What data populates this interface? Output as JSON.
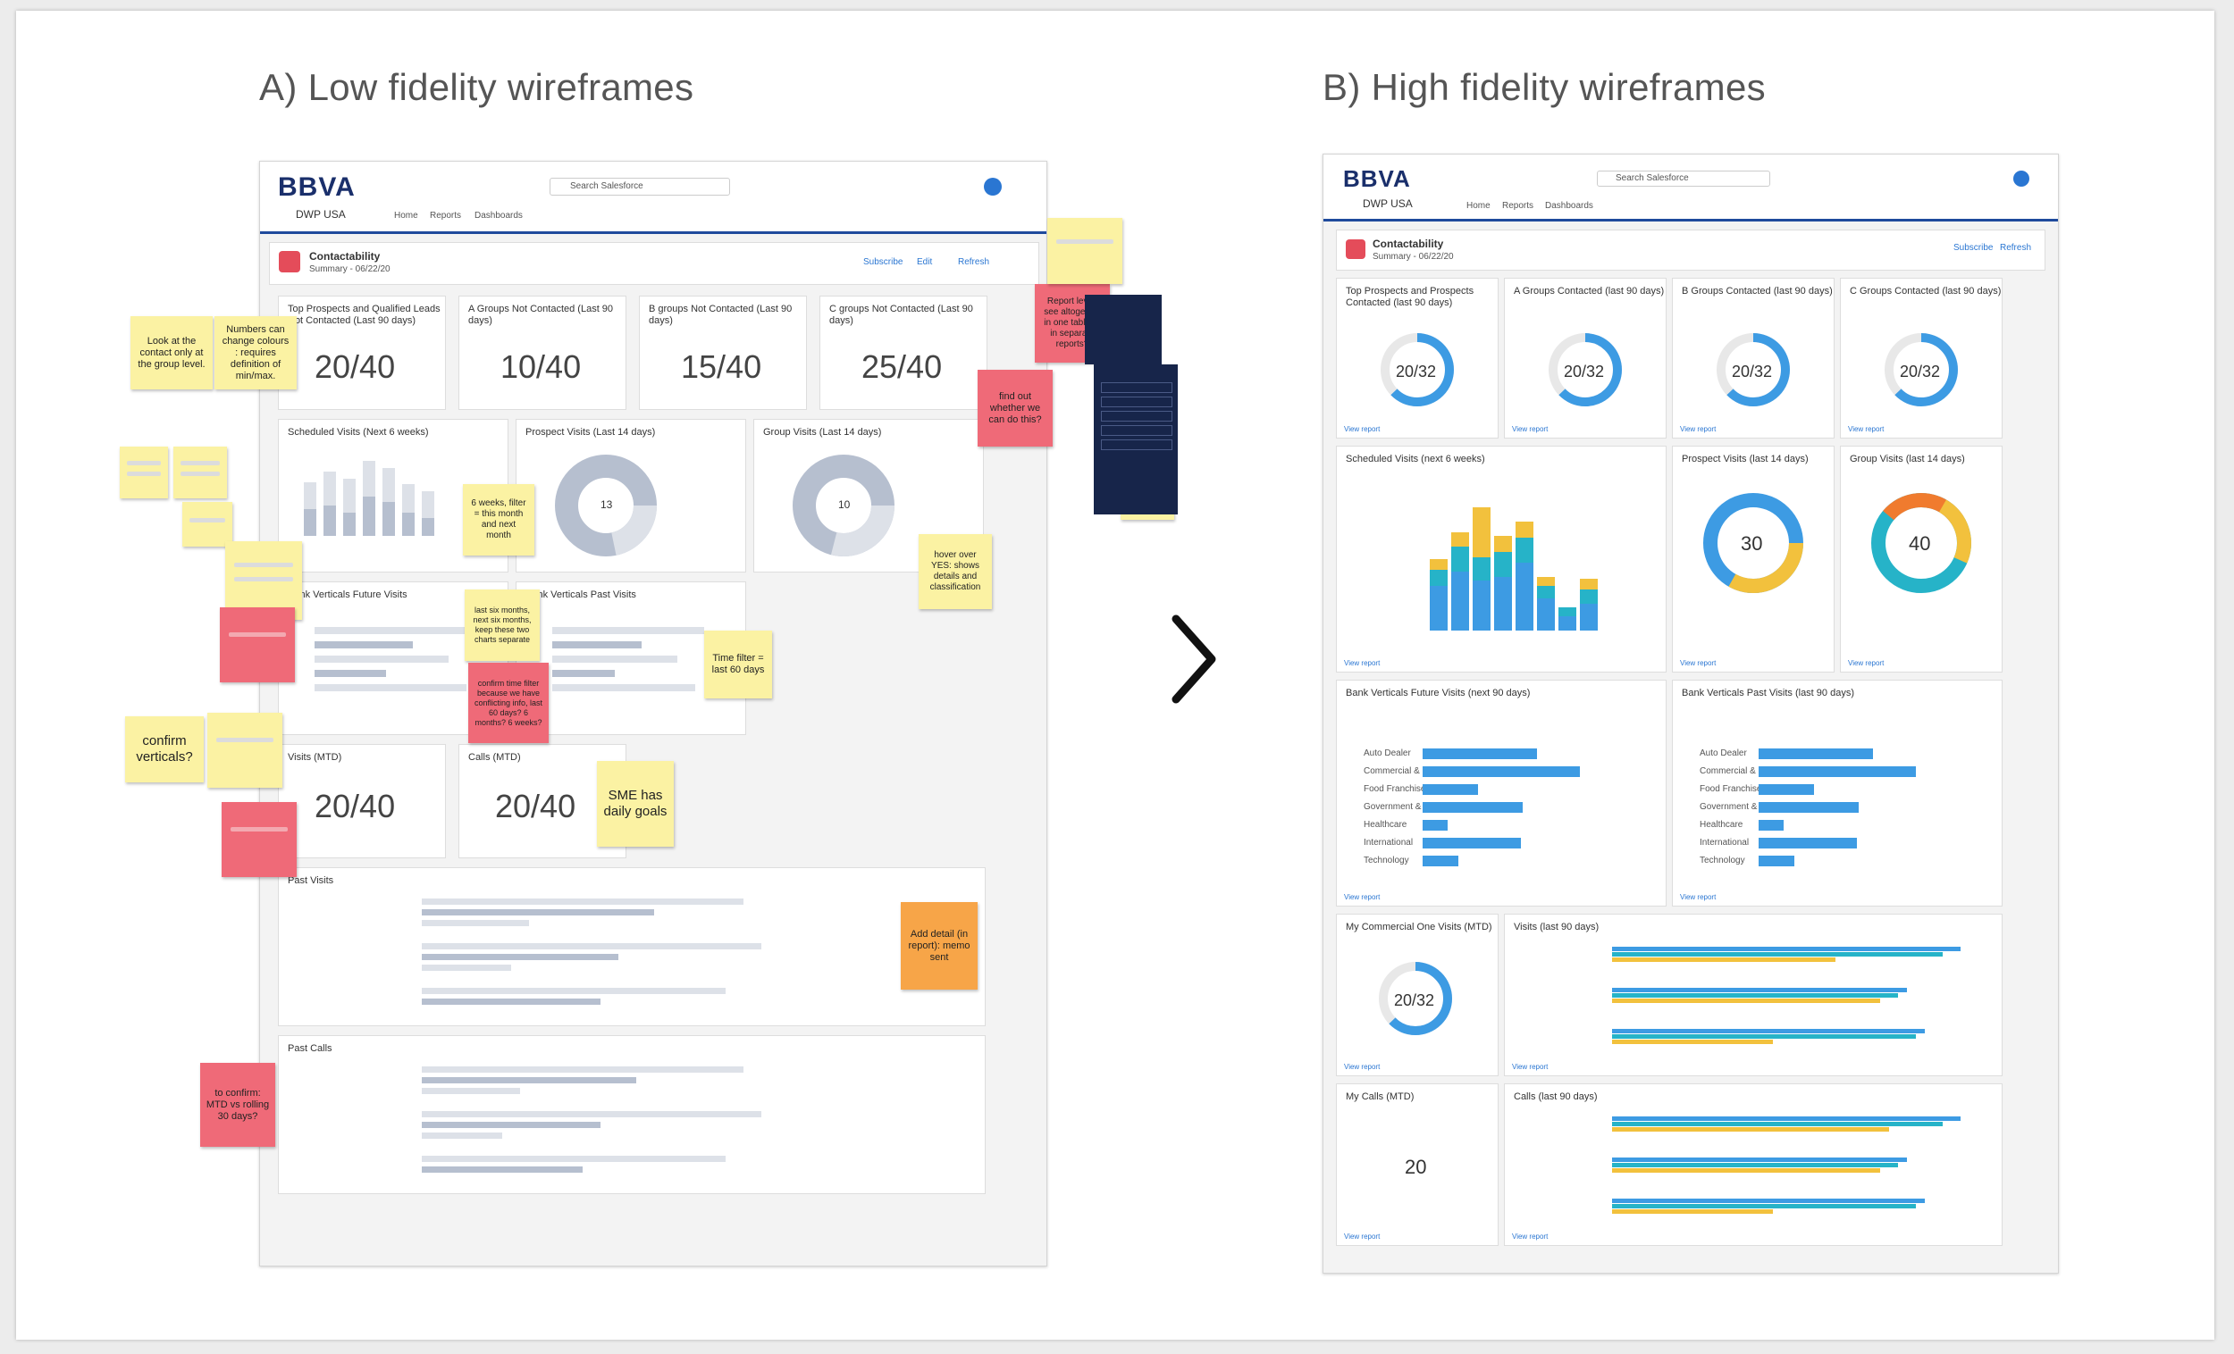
{
  "titles": {
    "a": "A) Low fidelity wireframes",
    "b": "B) High fidelity wireframes"
  },
  "brand": {
    "logo": "BBVA",
    "app": "DWP USA",
    "nav": [
      "Home",
      "Reports",
      "Dashboards"
    ],
    "search_placeholder": "Search Salesforce"
  },
  "dashboard": {
    "title": "Contactability",
    "subtitle": "Summary - 06/22/20",
    "actions": [
      "Subscribe",
      "Edit",
      "Refresh"
    ]
  },
  "low": {
    "kpis": [
      {
        "title": "Top Prospects and Qualified Leads Not Contacted (Last 90 days)",
        "value": "20/40"
      },
      {
        "title": "A Groups Not Contacted (Last 90 days)",
        "value": "10/40"
      },
      {
        "title": "B groups Not Contacted (Last 90 days)",
        "value": "15/40"
      },
      {
        "title": "C groups Not Contacted (Last 90 days)",
        "value": "25/40"
      }
    ],
    "charts": {
      "scheduled": "Scheduled Visits (Next 6 weeks)",
      "prospect": "Prospect Visits (Last 14 days)",
      "group": "Group Visits (Last 14 days)",
      "future": "Bank Verticals Future Visits",
      "past_v": "Bank Verticals Past Visits",
      "visits_mtd": "Visits (MTD)",
      "calls_mtd": "Calls (MTD)",
      "past_visits": "Past Visits",
      "past_calls": "Past Calls"
    },
    "donut_values": {
      "prospect": "13",
      "group": "10"
    },
    "mtd_values": {
      "visits": "20/40",
      "calls": "20/40"
    }
  },
  "high": {
    "kpis": [
      {
        "title": "Top Prospects and Prospects Contacted (last 90 days)",
        "value": "20/32"
      },
      {
        "title": "A Groups Contacted (last 90 days)",
        "value": "20/32"
      },
      {
        "title": "B Groups Contacted (last 90 days)",
        "value": "20/32"
      },
      {
        "title": "C Groups Contacted (last 90 days)",
        "value": "20/32"
      }
    ],
    "charts": {
      "scheduled": "Scheduled Visits (next 6 weeks)",
      "prospect": "Prospect Visits (last 14 days)",
      "group": "Group Visits (last 14 days)",
      "future": "Bank Verticals Future Visits (next 90 days)",
      "past_v": "Bank Verticals Past Visits (last 90 days)",
      "commercial": "My Commercial One Visits (MTD)",
      "visits_last": "Visits (last 90 days)",
      "calls_mtd": "My Calls (MTD)",
      "calls_last": "Calls (last 90 days)"
    },
    "donut_values": {
      "prospect": "30",
      "group": "40"
    },
    "calls_value": "20",
    "verticals": [
      "Auto Dealer",
      "Commercial & Industrial",
      "Food Franchise",
      "Government & Institutions",
      "Healthcare",
      "International",
      "Technology"
    ],
    "view_report": "View report"
  },
  "stickies": [
    "Look at the contact only at the group level.",
    "Numbers can change colours : requires definition of min/max.",
    "confirm verticals?",
    "SME has daily goals",
    "6 weeks, filter = this month and next month",
    "Time filter = last 60 days",
    "find out whether we can do this?",
    "Add detail (in report): memo sent",
    "to confirm: MTD vs rolling 30 days?",
    "hover over YES: shows details and classification",
    "last six months, next six months, keep these two charts separate",
    "confirm time filter because we have conflicting info, last 60 days? 6 months? 6 weeks?",
    "Report level: see altogether in one table or in separate reports?"
  ],
  "colors": {
    "accent": "#1f4a9c",
    "blue": "#3d9be3",
    "teal": "#26b3c8",
    "yellow": "#f2c13d",
    "orange": "#f07b2e",
    "sticky_yellow": "#fbf2a3",
    "sticky_pink": "#ef6a78"
  }
}
